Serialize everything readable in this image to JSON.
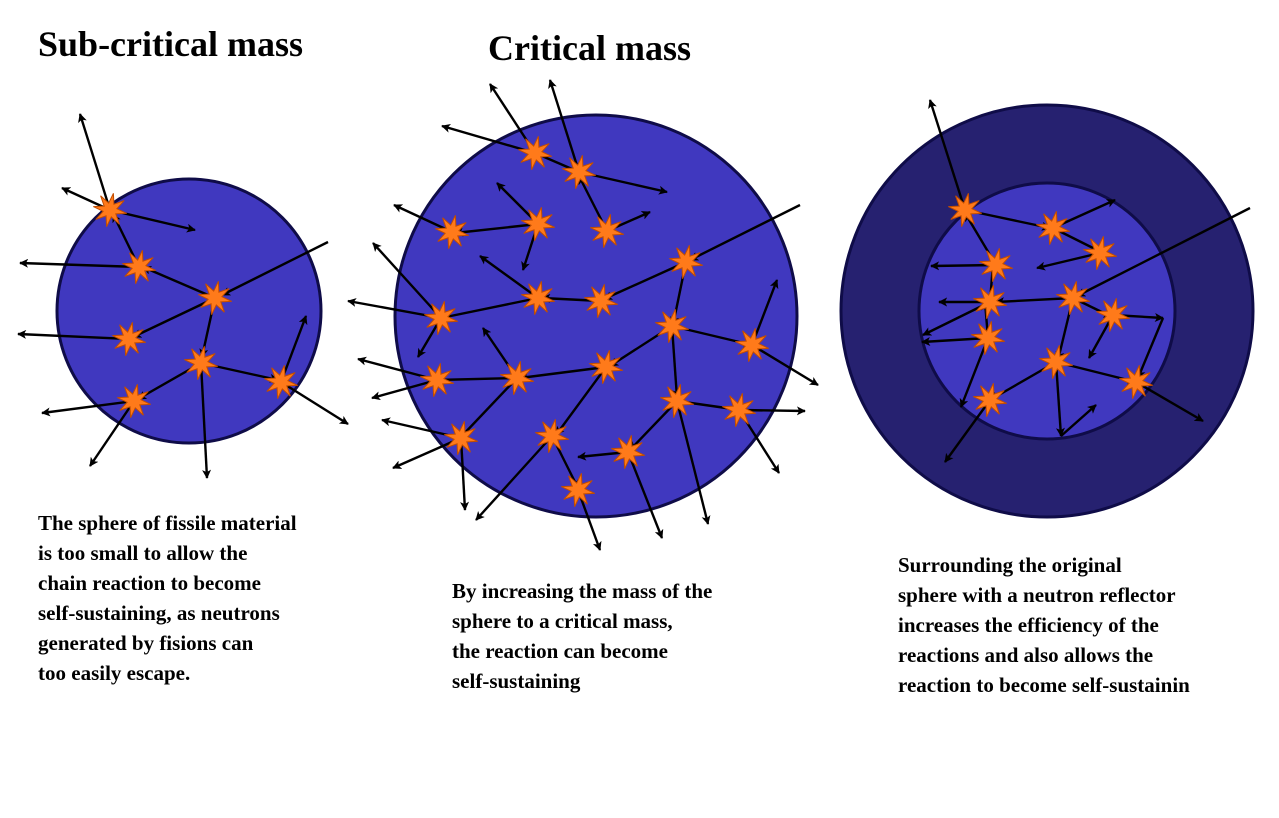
{
  "titles": {
    "subcritical": "Sub-critical mass",
    "critical": "Critical mass"
  },
  "captions": {
    "subcritical": "The sphere of fissile material\nis too small to allow the\nchain reaction to become\nself-sustaining, as neutrons\ngenerated by fisions can\ntoo easily escape.",
    "critical": "By increasing the mass of the\nsphere to a critical mass,\nthe reaction can become\nself-sustaining",
    "reflector": "Surrounding the original\nsphere with a neutron reflector\nincreases the efficiency of the\nreactions and also allows the\nreaction to become self-sustainin"
  },
  "colors": {
    "fissile_sphere": "#4038bf",
    "reflector_shell": "#262170",
    "outline": "#0f0c48",
    "fission_burst": "#ff7a1a",
    "burst_edge": "#c24d00",
    "neutron_path": "#000000"
  },
  "icons": {
    "fission_event": "fission-burst-icon",
    "neutron": "neutron-arrow-icon"
  }
}
